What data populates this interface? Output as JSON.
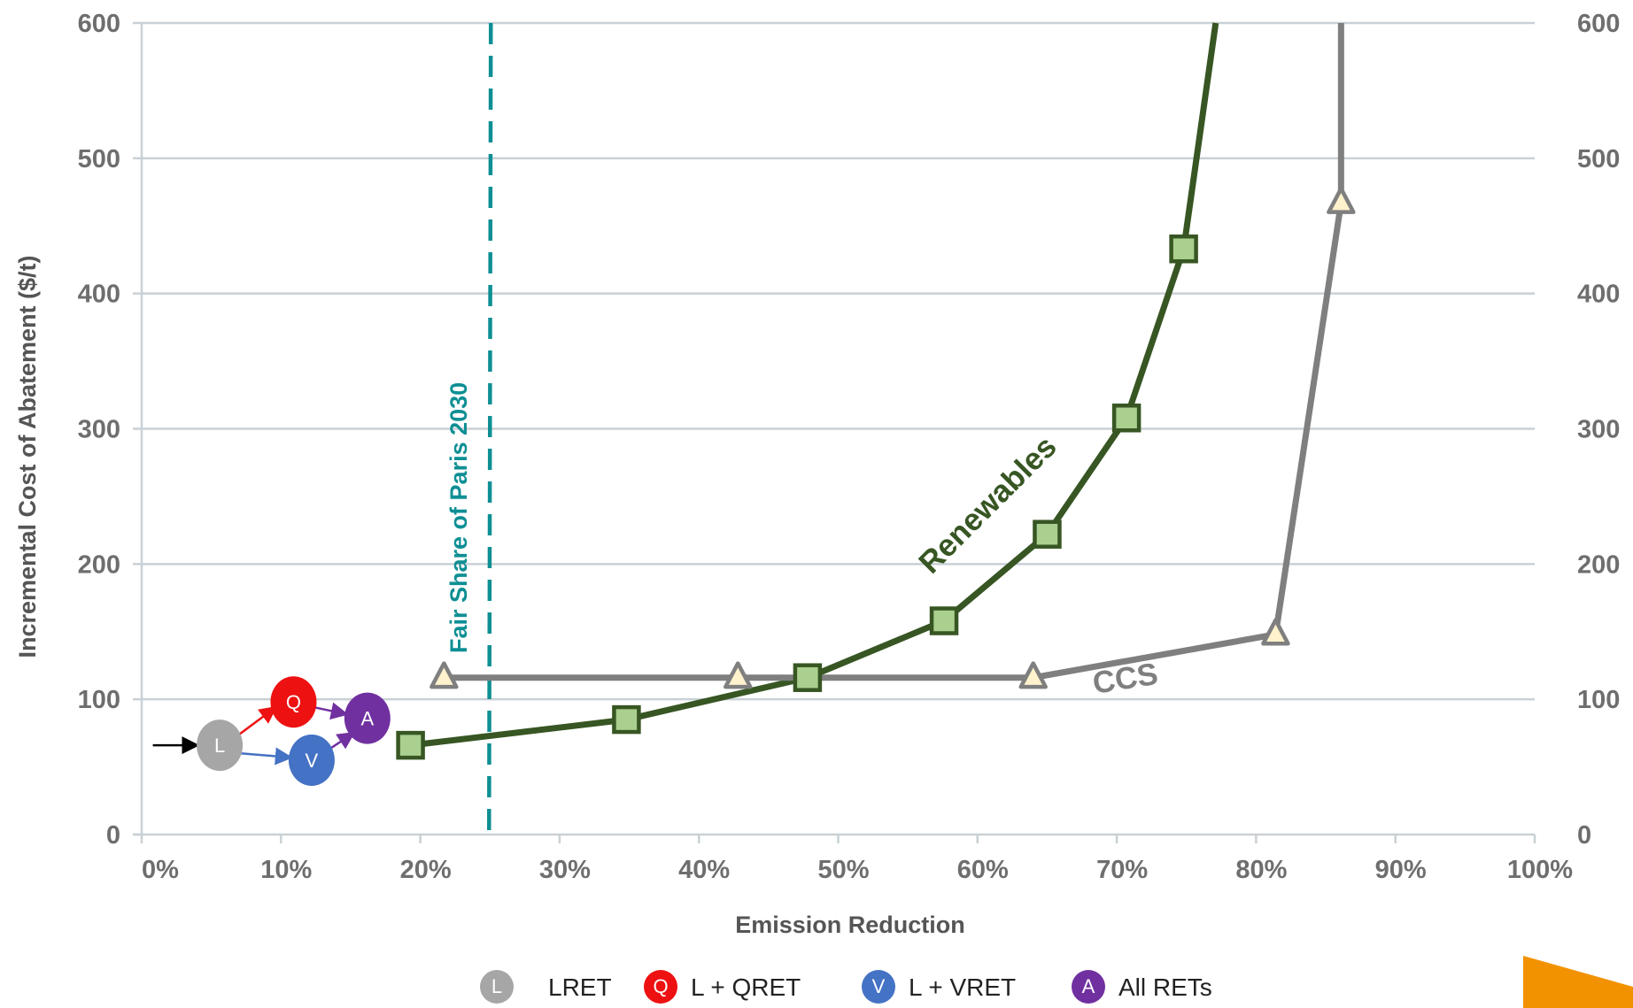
{
  "chart_data": {
    "type": "line",
    "xlabel": "Emission Reduction",
    "ylabel": "Incremental Cost of Abatement ($/t)",
    "xlim": [
      0,
      100
    ],
    "ylim": [
      0,
      600
    ],
    "x_ticks": [
      "0%",
      "10%",
      "20%",
      "30%",
      "40%",
      "50%",
      "60%",
      "70%",
      "80%",
      "90%",
      "100%"
    ],
    "y_ticks": [
      "0",
      "100",
      "200",
      "300",
      "400",
      "500",
      "600"
    ],
    "y_ticks_right": [
      "0",
      "100",
      "200",
      "300",
      "400",
      "500",
      "600"
    ],
    "grid": true,
    "series": [
      {
        "name": "Renewables",
        "color": "#375623",
        "marker_fill": "#a9d08e",
        "marker": "square",
        "x": [
          19.3,
          34.8,
          47.8,
          57.6,
          65.0,
          70.7,
          74.8,
          77.1
        ],
        "y": [
          66,
          85,
          116,
          158,
          222,
          308,
          433,
          600
        ],
        "marked": [
          true,
          true,
          true,
          true,
          true,
          true,
          true,
          false
        ]
      },
      {
        "name": "CCS",
        "color": "#7f7f7f",
        "marker_fill": "#fff2cc",
        "marker": "triangle",
        "x": [
          21.7,
          42.8,
          64.0,
          81.4,
          86.1,
          86.1
        ],
        "y": [
          116,
          116,
          116,
          148,
          467,
          600
        ],
        "marked": [
          true,
          true,
          true,
          true,
          true,
          false
        ]
      }
    ],
    "reference_line": {
      "x": 25.0,
      "label": "Fair Share of Paris 2030",
      "color": "#0e8f94"
    },
    "scenario_markers": [
      {
        "letter": "L",
        "x": 5.6,
        "y": 66,
        "color": "#a6a6a6"
      },
      {
        "letter": "Q",
        "x": 10.9,
        "y": 98,
        "color": "#ee1111"
      },
      {
        "letter": "V",
        "x": 12.2,
        "y": 55,
        "color": "#4472c4"
      },
      {
        "letter": "A",
        "x": 16.2,
        "y": 86,
        "color": "#7030a0"
      }
    ],
    "arrows": [
      {
        "from": [
          0.8,
          66
        ],
        "to": [
          4.0,
          66
        ],
        "color": "#000000"
      },
      {
        "from": [
          7.0,
          74
        ],
        "to": [
          9.6,
          94
        ],
        "color": "#ee1111"
      },
      {
        "from": [
          7.1,
          60
        ],
        "to": [
          10.7,
          57
        ],
        "color": "#4472c4"
      },
      {
        "from": [
          12.4,
          94
        ],
        "to": [
          14.7,
          89
        ],
        "color": "#7030a0"
      },
      {
        "from": [
          13.6,
          64
        ],
        "to": [
          15.2,
          75
        ],
        "color": "#7030a0"
      }
    ],
    "legend": {
      "placement": "bottom",
      "items": [
        {
          "letter": "L",
          "label": "LRET",
          "color": "#a6a6a6"
        },
        {
          "letter": "Q",
          "label": "L + QRET",
          "color": "#ee1111"
        },
        {
          "letter": "V",
          "label": "L + VRET",
          "color": "#4472c4"
        },
        {
          "letter": "A",
          "label": "All RETs",
          "color": "#7030a0"
        }
      ]
    },
    "decoration_color": "#f39200"
  }
}
